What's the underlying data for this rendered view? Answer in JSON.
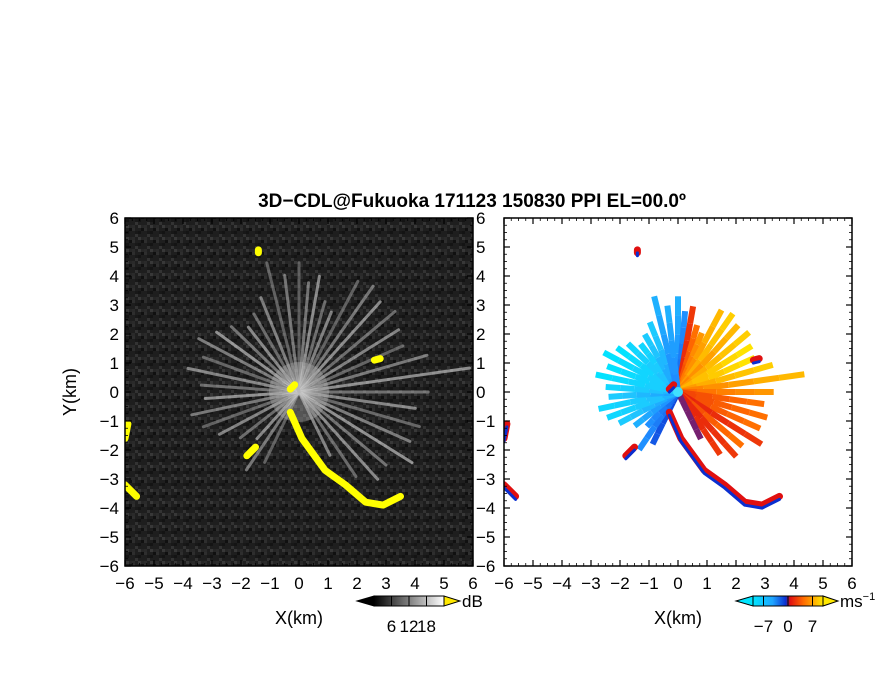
{
  "chart_data": {
    "type": "heatmap",
    "title": "3D−CDL@Fukuoka 171123 150830 PPI EL=00.0º",
    "panels": [
      {
        "id": "snr",
        "xlabel": "X(km)",
        "ylabel": "Y(km)",
        "xlim": [
          -6,
          6
        ],
        "ylim": [
          -6,
          6
        ],
        "x_ticks": [
          "−6",
          "−5",
          "−4",
          "−3",
          "−2",
          "−1",
          "0",
          "1",
          "2",
          "3",
          "4",
          "5",
          "6"
        ],
        "y_ticks": [
          "6",
          "5",
          "4",
          "3",
          "2",
          "1",
          "0",
          "−1",
          "−2",
          "−3",
          "−4",
          "−5",
          "−6"
        ],
        "background": "#1e1e1e",
        "hard_target_color": "#ffff00",
        "colorbar": {
          "unit": "dB",
          "ticks": [
            "6",
            "12",
            "18"
          ],
          "range": [
            0,
            24
          ]
        }
      },
      {
        "id": "velocity",
        "xlabel": "X(km)",
        "xlim": [
          -6,
          6
        ],
        "ylim": [
          -6,
          6
        ],
        "x_ticks": [
          "−6",
          "−5",
          "−4",
          "−3",
          "−2",
          "−1",
          "0",
          "1",
          "2",
          "3",
          "4",
          "5",
          "6"
        ],
        "y_ticks": [
          "6",
          "5",
          "4",
          "3",
          "2",
          "1",
          "0",
          "−1",
          "−2",
          "−3",
          "−4",
          "−5",
          "−6"
        ],
        "background": "#ffffff",
        "colorbar": {
          "unit": "ms",
          "unit_exp": "−1",
          "ticks": [
            "−7",
            "0",
            "7"
          ],
          "range": [
            -10,
            10
          ]
        }
      }
    ],
    "hard_target_segments": [
      [
        [
          -0.3,
          -0.7
        ],
        [
          0.1,
          -1.6
        ],
        [
          0.9,
          -2.7
        ],
        [
          1.6,
          -3.2
        ],
        [
          2.3,
          -3.8
        ],
        [
          2.9,
          -3.9
        ],
        [
          3.5,
          -3.6
        ]
      ],
      [
        [
          -5.9,
          -1.1
        ],
        [
          -6.0,
          -1.6
        ]
      ],
      [
        [
          -6.0,
          -3.2
        ],
        [
          -5.6,
          -3.6
        ]
      ],
      [
        [
          -1.8,
          -2.2
        ],
        [
          -1.5,
          -1.9
        ]
      ],
      [
        [
          -1.4,
          4.8
        ],
        [
          -1.4,
          4.9
        ]
      ],
      [
        [
          2.6,
          1.1
        ],
        [
          2.8,
          1.15
        ]
      ],
      [
        [
          -0.3,
          0.1
        ],
        [
          -0.15,
          0.25
        ]
      ]
    ],
    "velocity_beams": [
      {
        "az": 0,
        "len": 3.3,
        "v": -3
      },
      {
        "az": 5,
        "len": 2.8,
        "v": -2
      },
      {
        "az": 10,
        "len": 3.0,
        "v": 1
      },
      {
        "az": 16,
        "len": 2.4,
        "v": 2
      },
      {
        "az": 22,
        "len": 2.2,
        "v": 3
      },
      {
        "az": 28,
        "len": 3.2,
        "v": 4
      },
      {
        "az": 35,
        "len": 3.3,
        "v": 5
      },
      {
        "az": 42,
        "len": 3.1,
        "v": 4
      },
      {
        "az": 50,
        "len": 3.2,
        "v": 5
      },
      {
        "az": 58,
        "len": 3.0,
        "v": 6
      },
      {
        "az": 66,
        "len": 2.9,
        "v": 6
      },
      {
        "az": 74,
        "len": 3.4,
        "v": 5
      },
      {
        "az": 82,
        "len": 4.4,
        "v": 4
      },
      {
        "az": 90,
        "len": 3.3,
        "v": 3
      },
      {
        "az": 98,
        "len": 3.0,
        "v": 2
      },
      {
        "az": 106,
        "len": 3.2,
        "v": 2
      },
      {
        "az": 114,
        "len": 3.1,
        "v": 2
      },
      {
        "az": 122,
        "len": 3.4,
        "v": 1
      },
      {
        "az": 130,
        "len": 2.9,
        "v": 2
      },
      {
        "az": 138,
        "len": 3.0,
        "v": 1
      },
      {
        "az": 146,
        "len": 2.6,
        "v": 1
      },
      {
        "az": 154,
        "len": 1.8,
        "v": 0
      },
      {
        "az": 206,
        "len": 2.0,
        "v": -1
      },
      {
        "az": 214,
        "len": 2.4,
        "v": -2
      },
      {
        "az": 222,
        "len": 1.6,
        "v": -2
      },
      {
        "az": 232,
        "len": 1.9,
        "v": -3
      },
      {
        "az": 242,
        "len": 2.3,
        "v": -4
      },
      {
        "az": 250,
        "len": 2.6,
        "v": -5
      },
      {
        "az": 258,
        "len": 2.8,
        "v": -5
      },
      {
        "az": 266,
        "len": 2.4,
        "v": -4
      },
      {
        "az": 274,
        "len": 2.5,
        "v": -5
      },
      {
        "az": 282,
        "len": 2.9,
        "v": -6
      },
      {
        "az": 290,
        "len": 2.6,
        "v": -6
      },
      {
        "az": 298,
        "len": 2.9,
        "v": -6
      },
      {
        "az": 306,
        "len": 2.6,
        "v": -6
      },
      {
        "az": 314,
        "len": 2.4,
        "v": -5
      },
      {
        "az": 322,
        "len": 2.1,
        "v": -5
      },
      {
        "az": 330,
        "len": 2.3,
        "v": -4
      },
      {
        "az": 338,
        "len": 2.6,
        "v": -4
      },
      {
        "az": 346,
        "len": 3.4,
        "v": -3
      },
      {
        "az": 353,
        "len": 3.0,
        "v": -3
      }
    ]
  }
}
